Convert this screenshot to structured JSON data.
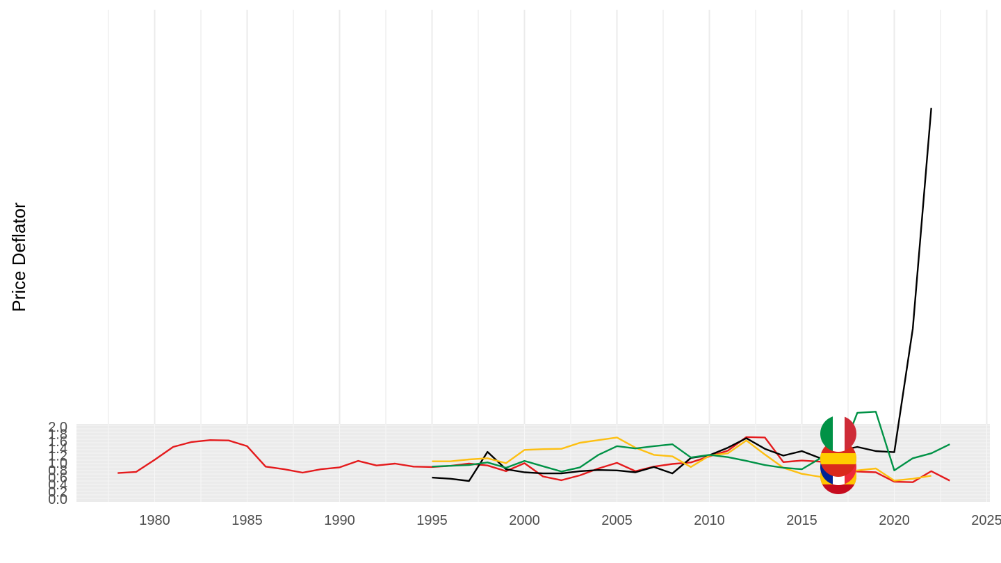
{
  "chart_data": {
    "type": "line",
    "title": "",
    "xlabel": "",
    "ylabel": "Price Deflator",
    "xlim": [
      1975,
      2025
    ],
    "x_ticks": [
      "1980",
      "1985",
      "1990",
      "1995",
      "2000",
      "2005",
      "2010",
      "2015",
      "2020",
      "2025"
    ],
    "y_ticks": [
      "0.0",
      "0.2",
      "0.4",
      "0.6",
      "0.8",
      "1.0",
      "1.2",
      "1.4",
      "1.6",
      "1.8",
      "2.0"
    ],
    "grid": true,
    "legend": "none",
    "flags": [
      "Italy",
      "Spain",
      "France",
      "Spain (emblem)"
    ],
    "series": [
      {
        "color": "#e41a1c",
        "points": [
          [
            1978,
            0.76
          ],
          [
            1979,
            0.79
          ],
          [
            1980,
            1.11
          ],
          [
            1981,
            1.45
          ],
          [
            1982,
            1.58
          ],
          [
            1983,
            1.63
          ],
          [
            1984,
            1.62
          ],
          [
            1985,
            1.47
          ],
          [
            1986,
            0.93
          ],
          [
            1987,
            0.86
          ],
          [
            1988,
            0.77
          ],
          [
            1989,
            0.86
          ],
          [
            1990,
            0.91
          ],
          [
            1991,
            1.08
          ],
          [
            1992,
            0.96
          ],
          [
            1993,
            1.01
          ],
          [
            1994,
            0.93
          ],
          [
            1995,
            0.92
          ],
          [
            1996,
            0.95
          ],
          [
            1997,
            1.01
          ],
          [
            1998,
            0.96
          ],
          [
            1999,
            0.81
          ],
          [
            2000,
            1.02
          ],
          [
            2001,
            0.67
          ],
          [
            2002,
            0.57
          ],
          [
            2003,
            0.7
          ],
          [
            2004,
            0.88
          ],
          [
            2005,
            1.03
          ],
          [
            2006,
            0.81
          ],
          [
            2007,
            0.93
          ],
          [
            2008,
            1.0
          ],
          [
            2009,
            1.04
          ],
          [
            2010,
            1.2
          ],
          [
            2011,
            1.35
          ],
          [
            2012,
            1.71
          ],
          [
            2013,
            1.7
          ],
          [
            2014,
            1.05
          ],
          [
            2015,
            1.09
          ],
          [
            2016,
            1.06
          ],
          [
            2017,
            0.88
          ],
          [
            2018,
            0.8
          ],
          [
            2019,
            0.78
          ],
          [
            2020,
            0.53
          ],
          [
            2021,
            0.52
          ],
          [
            2022,
            0.81
          ],
          [
            2023,
            0.56
          ]
        ]
      },
      {
        "color": "#000000",
        "points": [
          [
            1995,
            0.64
          ],
          [
            1996,
            0.61
          ],
          [
            1997,
            0.55
          ],
          [
            1998,
            1.32
          ],
          [
            1999,
            0.86
          ],
          [
            2000,
            0.78
          ],
          [
            2001,
            0.75
          ],
          [
            2002,
            0.75
          ],
          [
            2003,
            0.81
          ],
          [
            2004,
            0.84
          ],
          [
            2005,
            0.83
          ],
          [
            2006,
            0.78
          ],
          [
            2007,
            0.92
          ],
          [
            2008,
            0.75
          ],
          [
            2009,
            1.16
          ],
          [
            2010,
            1.23
          ],
          [
            2011,
            1.43
          ],
          [
            2012,
            1.68
          ],
          [
            2013,
            1.4
          ],
          [
            2014,
            1.22
          ],
          [
            2015,
            1.34
          ],
          [
            2016,
            1.15
          ],
          [
            2017,
            1.35
          ],
          [
            2018,
            1.45
          ],
          [
            2019,
            1.34
          ],
          [
            2020,
            1.31
          ],
          [
            2021,
            4.57
          ],
          [
            2022,
            10.4
          ]
        ]
      },
      {
        "color": "#fdbf11",
        "points": [
          [
            1995,
            1.07
          ],
          [
            1996,
            1.07
          ],
          [
            1997,
            1.12
          ],
          [
            1998,
            1.15
          ],
          [
            1999,
            1.02
          ],
          [
            2000,
            1.37
          ],
          [
            2001,
            1.39
          ],
          [
            2002,
            1.4
          ],
          [
            2003,
            1.56
          ],
          [
            2004,
            1.63
          ],
          [
            2005,
            1.7
          ],
          [
            2006,
            1.43
          ],
          [
            2007,
            1.24
          ],
          [
            2008,
            1.2
          ],
          [
            2009,
            0.92
          ],
          [
            2010,
            1.22
          ],
          [
            2011,
            1.28
          ],
          [
            2012,
            1.62
          ],
          [
            2013,
            1.25
          ],
          [
            2014,
            0.9
          ],
          [
            2015,
            0.74
          ],
          [
            2016,
            0.66
          ],
          [
            2017,
            0.72
          ],
          [
            2018,
            0.83
          ],
          [
            2019,
            0.88
          ],
          [
            2020,
            0.56
          ],
          [
            2021,
            0.61
          ],
          [
            2022,
            0.69
          ]
        ]
      },
      {
        "color": "#009246",
        "points": [
          [
            1995,
            0.93
          ],
          [
            1996,
            0.95
          ],
          [
            1997,
            0.97
          ],
          [
            1998,
            1.04
          ],
          [
            1999,
            0.9
          ],
          [
            2000,
            1.08
          ],
          [
            2001,
            0.94
          ],
          [
            2002,
            0.8
          ],
          [
            2003,
            0.91
          ],
          [
            2004,
            1.24
          ],
          [
            2005,
            1.47
          ],
          [
            2006,
            1.41
          ],
          [
            2007,
            1.47
          ],
          [
            2008,
            1.52
          ],
          [
            2009,
            1.17
          ],
          [
            2010,
            1.24
          ],
          [
            2011,
            1.18
          ],
          [
            2012,
            1.08
          ],
          [
            2013,
            0.97
          ],
          [
            2014,
            0.9
          ],
          [
            2015,
            0.86
          ],
          [
            2016,
            1.15
          ],
          [
            2017,
            1.09
          ],
          [
            2018,
            2.35
          ],
          [
            2019,
            2.38
          ],
          [
            2020,
            0.83
          ],
          [
            2021,
            1.15
          ],
          [
            2022,
            1.28
          ],
          [
            2023,
            1.52
          ]
        ]
      }
    ]
  }
}
